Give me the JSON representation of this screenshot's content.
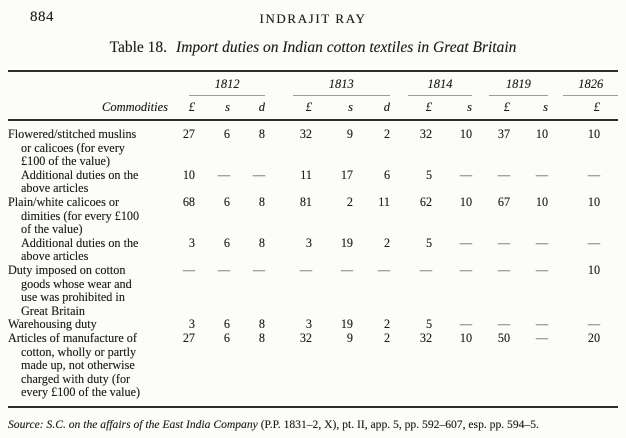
{
  "header": {
    "page_number": "884",
    "running_title": "INDRAJIT RAY"
  },
  "table": {
    "number": "Table 18.",
    "caption": "Import duties on Indian cotton textiles in Great Britain",
    "commodities_label": "Commodities",
    "year_groups": [
      {
        "label": "1812",
        "cols": 3
      },
      {
        "label": "1813",
        "cols": 3
      },
      {
        "label": "1814",
        "cols": 2
      },
      {
        "label": "1819",
        "cols": 2
      },
      {
        "label": "1826",
        "cols": 1
      }
    ],
    "currency_headers": [
      "£",
      "s",
      "d",
      "£",
      "s",
      "d",
      "£",
      "s",
      "£",
      "s",
      "£"
    ],
    "rows": [
      {
        "commodity_lines": [
          "Flowered/stitched muslins",
          "or calicoes (for every",
          "£100 of the value)"
        ],
        "indent": false,
        "values": [
          "27",
          "6",
          "8",
          "32",
          "9",
          "2",
          "32",
          "10",
          "37",
          "10",
          "10"
        ]
      },
      {
        "commodity_lines": [
          "Additional duties on the",
          "above articles"
        ],
        "indent": true,
        "values": [
          "10",
          "—",
          "—",
          "11",
          "17",
          "6",
          "5",
          "—",
          "—",
          "—",
          "—"
        ]
      },
      {
        "commodity_lines": [
          "Plain/white calicoes or",
          "dimities (for every £100",
          "of the value)"
        ],
        "indent": false,
        "values": [
          "68",
          "6",
          "8",
          "81",
          "2",
          "11",
          "62",
          "10",
          "67",
          "10",
          "10"
        ]
      },
      {
        "commodity_lines": [
          "Additional duties on the",
          "above articles"
        ],
        "indent": true,
        "values": [
          "3",
          "6",
          "8",
          "3",
          "19",
          "2",
          "5",
          "—",
          "—",
          "—",
          "—"
        ]
      },
      {
        "commodity_lines": [
          "Duty imposed on cotton",
          "goods whose wear and",
          "use was prohibited in",
          "Great Britain"
        ],
        "indent": false,
        "values": [
          "—",
          "—",
          "—",
          "—",
          "—",
          "—",
          "—",
          "—",
          "—",
          "—",
          "10"
        ]
      },
      {
        "commodity_lines": [
          "Warehousing duty"
        ],
        "indent": false,
        "values": [
          "3",
          "6",
          "8",
          "3",
          "19",
          "2",
          "5",
          "—",
          "—",
          "—",
          "—"
        ]
      },
      {
        "commodity_lines": [
          "Articles of manufacture of",
          "cotton, wholly or partly",
          "made up, not otherwise",
          "charged with duty (for",
          "every £100 of the value)"
        ],
        "indent": false,
        "values": [
          "27",
          "6",
          "8",
          "32",
          "9",
          "2",
          "32",
          "10",
          "50",
          "—",
          "20"
        ]
      }
    ]
  },
  "source": {
    "italic_part": "Source: S.C. on the affairs of the East India Company",
    "roman_part": "(P.P. 1831–2, X), pt. II, app. 5, pp. 592–607, esp. pp. 594–5."
  },
  "colors": {
    "paper": "#fcfcfa",
    "text": "#1d1d1d",
    "rule_dark": "#2e2e2e",
    "rule_light": "#9b9b98"
  }
}
